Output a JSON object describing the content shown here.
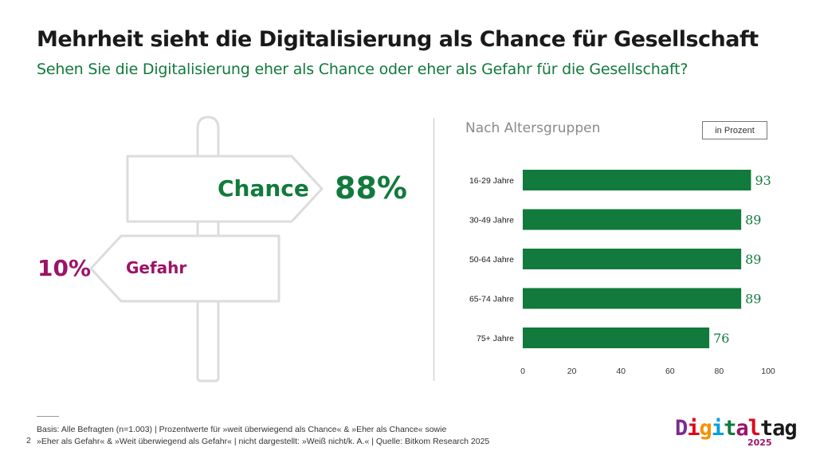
{
  "title": "Mehrheit sieht die Digitalisierung als Chance für Gesellschaft",
  "subtitle": "Sehen Sie die Digitalisierung eher als Chance oder eher als Gefahr für die Gesellschaft?",
  "signpost": {
    "chance_label": "Chance",
    "chance_value": "88%",
    "gefahr_label": "Gefahr",
    "gefahr_value": "10%"
  },
  "chart_header": {
    "subtitle": "Nach Altersgruppen",
    "unit": "in Prozent"
  },
  "chart_data": {
    "type": "bar",
    "orientation": "horizontal",
    "categories": [
      "16-29 Jahre",
      "30-49 Jahre",
      "50-64 Jahre",
      "65-74 Jahre",
      "75+ Jahre"
    ],
    "values": [
      93,
      89,
      89,
      89,
      76
    ],
    "xlim": [
      0,
      100
    ],
    "xticks": [
      0,
      20,
      40,
      60,
      80,
      100
    ],
    "grid": false,
    "bar_color": "#117a3c"
  },
  "footer": {
    "line1": "Basis: Alle Befragten (n=1.003) | Prozentwerte für »weit überwiegend als Chance« & »Eher als Chance«  sowie",
    "line2": "»Eher als Gefahr« & »Weit überwiegend als Gefahr« | nicht dargestellt: »Weiß nicht/k. A.« | Quelle: Bitkom Research 2025",
    "page_number": "2"
  },
  "logo": {
    "letters": [
      "D",
      "i",
      "g",
      "i",
      "t",
      "a",
      "l",
      "t",
      "a",
      "g"
    ],
    "colors": [
      "#7b2d8e",
      "#e2001a",
      "#f39200",
      "#009fe3",
      "#117a3c",
      "#9c1368",
      "#e2001a",
      "#1a1a1a",
      "#1a1a1a",
      "#1a1a1a"
    ],
    "year": "2025"
  },
  "colors": {
    "accent_green": "#117a3c",
    "accent_magenta": "#9c1368"
  }
}
